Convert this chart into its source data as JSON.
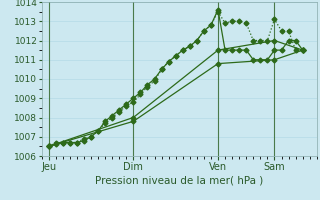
{
  "xlabel": "Pression niveau de la mer( hPa )",
  "bg_color": "#cce8f0",
  "grid_color": "#b8dde8",
  "line_color": "#2d6a1a",
  "vline_color": "#4a7a4a",
  "ylim": [
    1006,
    1014
  ],
  "yticks": [
    1006,
    1007,
    1008,
    1009,
    1010,
    1011,
    1012,
    1013,
    1014
  ],
  "xtick_labels": [
    "Jeu",
    "Dim",
    "Ven",
    "Sam"
  ],
  "xtick_positions": [
    0,
    36,
    72,
    96
  ],
  "xlim": [
    -3,
    114
  ],
  "vline_positions": [
    0,
    36,
    72,
    96
  ],
  "series": [
    {
      "x": [
        0,
        3,
        6,
        9,
        12,
        15,
        18,
        21,
        24,
        27,
        30,
        33,
        36,
        39,
        42,
        45,
        48,
        51,
        54,
        57,
        60,
        63,
        66,
        69,
        72,
        75,
        78,
        81,
        84,
        87,
        90,
        93,
        96,
        99,
        102,
        105,
        108
      ],
      "y": [
        1006.5,
        1006.7,
        1006.7,
        1006.7,
        1006.7,
        1006.9,
        1007.0,
        1007.3,
        1007.7,
        1008.0,
        1008.3,
        1008.6,
        1008.8,
        1009.2,
        1009.6,
        1009.9,
        1010.5,
        1010.9,
        1011.2,
        1011.5,
        1011.7,
        1012.0,
        1012.5,
        1012.8,
        1013.5,
        1012.9,
        1013.0,
        1013.0,
        1012.9,
        1012.0,
        1012.0,
        1012.0,
        1013.1,
        1012.5,
        1012.5,
        1011.5,
        1011.5
      ],
      "linestyle": "dotted",
      "marker": "D",
      "markersize": 2.5,
      "linewidth": 0.9
    },
    {
      "x": [
        0,
        3,
        6,
        9,
        12,
        15,
        18,
        21,
        24,
        27,
        30,
        33,
        36,
        39,
        42,
        45,
        48,
        51,
        54,
        57,
        60,
        63,
        66,
        69,
        72,
        75,
        78,
        81,
        84,
        87,
        90,
        93,
        96,
        99,
        102,
        105,
        108
      ],
      "y": [
        1006.5,
        1006.6,
        1006.7,
        1006.7,
        1006.7,
        1006.8,
        1007.0,
        1007.3,
        1007.8,
        1008.1,
        1008.4,
        1008.7,
        1009.0,
        1009.3,
        1009.7,
        1010.0,
        1010.5,
        1010.9,
        1011.2,
        1011.5,
        1011.7,
        1012.0,
        1012.5,
        1012.8,
        1013.6,
        1011.5,
        1011.5,
        1011.5,
        1011.5,
        1011.0,
        1011.0,
        1011.0,
        1011.5,
        1011.5,
        1012.0,
        1012.0,
        1011.5
      ],
      "linestyle": "solid",
      "marker": "D",
      "markersize": 2.5,
      "linewidth": 0.9
    },
    {
      "x": [
        0,
        36,
        72,
        96,
        108
      ],
      "y": [
        1006.5,
        1007.8,
        1010.8,
        1011.0,
        1011.5
      ],
      "linestyle": "solid",
      "marker": "D",
      "markersize": 2.5,
      "linewidth": 0.9
    },
    {
      "x": [
        0,
        36,
        72,
        96,
        108
      ],
      "y": [
        1006.5,
        1008.0,
        1011.5,
        1012.0,
        1011.5
      ],
      "linestyle": "solid",
      "marker": "D",
      "markersize": 2.5,
      "linewidth": 0.9
    }
  ]
}
